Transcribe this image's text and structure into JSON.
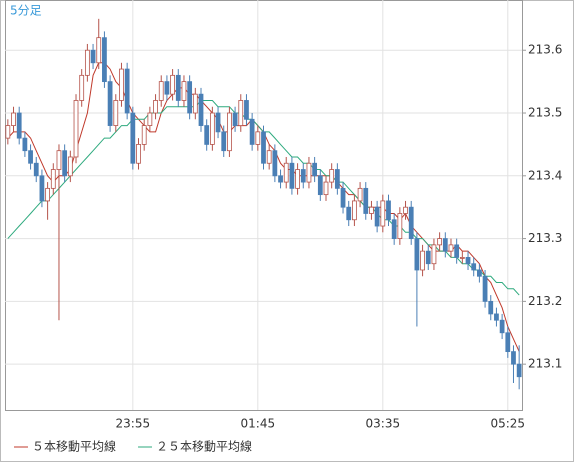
{
  "chart_data": {
    "type": "candlestick",
    "label": "5分足",
    "categories": [
      null,
      null,
      null,
      null,
      null,
      null,
      null,
      null,
      null,
      null,
      null,
      null,
      null,
      null,
      null,
      null,
      null,
      null,
      null,
      null,
      null,
      null,
      "23:55",
      null,
      null,
      null,
      null,
      null,
      null,
      null,
      null,
      null,
      null,
      null,
      null,
      null,
      null,
      null,
      null,
      null,
      null,
      null,
      null,
      null,
      "01:45",
      null,
      null,
      null,
      null,
      null,
      null,
      null,
      null,
      null,
      null,
      null,
      null,
      null,
      null,
      null,
      null,
      null,
      null,
      null,
      null,
      null,
      "03:35",
      null,
      null,
      null,
      null,
      null,
      null,
      null,
      null,
      null,
      null,
      null,
      null,
      null,
      null,
      null,
      null,
      null,
      null,
      null,
      null,
      null,
      "05:25",
      null,
      null
    ],
    "open": [
      213.46,
      213.48,
      213.5,
      213.46,
      213.44,
      213.42,
      213.4,
      213.36,
      213.38,
      213.41,
      213.44,
      213.4,
      213.43,
      213.52,
      213.56,
      213.6,
      213.58,
      213.62,
      213.55,
      213.48,
      213.52,
      213.57,
      213.5,
      213.42,
      213.45,
      213.48,
      213.5,
      213.52,
      213.55,
      213.53,
      213.56,
      213.52,
      213.55,
      213.5,
      213.53,
      213.48,
      213.45,
      213.5,
      213.47,
      213.44,
      213.5,
      213.48,
      213.52,
      213.49,
      213.45,
      213.47,
      213.42,
      213.44,
      213.4,
      213.39,
      213.42,
      213.38,
      213.41,
      213.39,
      213.42,
      213.4,
      213.37,
      213.39,
      213.41,
      213.38,
      213.35,
      213.33,
      213.36,
      213.38,
      213.34,
      213.35,
      213.32,
      213.36,
      213.33,
      213.3,
      213.34,
      213.35,
      213.3,
      213.25,
      213.28,
      213.26,
      213.29,
      213.3,
      213.28,
      213.29,
      213.27,
      213.27,
      213.26,
      213.25,
      213.24,
      213.2,
      213.18,
      213.17,
      213.15,
      213.12,
      213.1
    ],
    "high": [
      213.49,
      213.51,
      213.51,
      213.47,
      213.45,
      213.43,
      213.41,
      213.39,
      213.42,
      213.45,
      213.45,
      213.44,
      213.53,
      213.57,
      213.61,
      213.61,
      213.65,
      213.63,
      213.56,
      213.53,
      213.58,
      213.58,
      213.51,
      213.46,
      213.49,
      213.51,
      213.53,
      213.56,
      213.56,
      213.57,
      213.57,
      213.56,
      213.56,
      213.54,
      213.54,
      213.49,
      213.51,
      213.51,
      213.48,
      213.51,
      213.51,
      213.53,
      213.53,
      213.5,
      213.48,
      213.48,
      213.45,
      213.45,
      213.41,
      213.43,
      213.43,
      213.42,
      213.42,
      213.43,
      213.43,
      213.41,
      213.4,
      213.42,
      213.42,
      213.39,
      213.36,
      213.37,
      213.39,
      213.39,
      213.36,
      213.36,
      213.37,
      213.37,
      213.34,
      213.35,
      213.36,
      213.36,
      213.31,
      213.29,
      213.29,
      213.3,
      213.31,
      213.31,
      213.3,
      213.3,
      213.28,
      213.28,
      213.27,
      213.26,
      213.25,
      213.21,
      213.19,
      213.18,
      213.16,
      213.13,
      213.13
    ],
    "low": [
      213.45,
      213.47,
      213.45,
      213.43,
      213.41,
      213.39,
      213.35,
      213.33,
      213.37,
      213.17,
      213.39,
      213.39,
      213.42,
      213.51,
      213.55,
      213.57,
      213.57,
      213.54,
      213.47,
      213.47,
      213.51,
      213.49,
      213.41,
      213.41,
      213.44,
      213.47,
      213.49,
      213.51,
      213.52,
      213.52,
      213.51,
      213.51,
      213.49,
      213.49,
      213.47,
      213.44,
      213.44,
      213.46,
      213.43,
      213.43,
      213.47,
      213.47,
      213.48,
      213.44,
      213.44,
      213.41,
      213.41,
      213.39,
      213.38,
      213.38,
      213.37,
      213.37,
      213.38,
      213.38,
      213.39,
      213.36,
      213.36,
      213.38,
      213.37,
      213.34,
      213.32,
      213.32,
      213.35,
      213.33,
      213.33,
      213.31,
      213.31,
      213.32,
      213.29,
      213.29,
      213.33,
      213.29,
      213.16,
      213.24,
      213.25,
      213.25,
      213.28,
      213.27,
      213.27,
      213.26,
      213.26,
      213.25,
      213.24,
      213.23,
      213.19,
      213.17,
      213.16,
      213.14,
      213.11,
      213.07,
      213.06
    ],
    "close": [
      213.48,
      213.5,
      213.46,
      213.44,
      213.42,
      213.4,
      213.36,
      213.38,
      213.41,
      213.44,
      213.4,
      213.43,
      213.52,
      213.56,
      213.6,
      213.58,
      213.62,
      213.55,
      213.48,
      213.52,
      213.57,
      213.5,
      213.42,
      213.45,
      213.48,
      213.5,
      213.52,
      213.55,
      213.53,
      213.56,
      213.52,
      213.55,
      213.5,
      213.53,
      213.48,
      213.45,
      213.5,
      213.47,
      213.44,
      213.5,
      213.48,
      213.52,
      213.49,
      213.45,
      213.47,
      213.42,
      213.44,
      213.4,
      213.39,
      213.42,
      213.38,
      213.41,
      213.39,
      213.42,
      213.4,
      213.37,
      213.39,
      213.41,
      213.38,
      213.35,
      213.33,
      213.36,
      213.38,
      213.34,
      213.35,
      213.32,
      213.36,
      213.33,
      213.3,
      213.34,
      213.35,
      213.3,
      213.25,
      213.28,
      213.26,
      213.29,
      213.3,
      213.28,
      213.29,
      213.27,
      213.27,
      213.26,
      213.25,
      213.24,
      213.2,
      213.18,
      213.17,
      213.15,
      213.12,
      213.1,
      213.08
    ],
    "up_color": "#b5534a",
    "down_color": "#4a7fb5",
    "series": [
      {
        "name": "５本移動平均線",
        "color": "#c0392b",
        "values": [
          213.46,
          213.47,
          213.47,
          213.47,
          213.46,
          213.44,
          213.42,
          213.4,
          213.39,
          213.4,
          213.4,
          213.41,
          213.44,
          213.47,
          213.5,
          213.56,
          213.58,
          213.58,
          213.57,
          213.55,
          213.54,
          213.52,
          213.5,
          213.49,
          213.48,
          213.47,
          213.47,
          213.5,
          213.52,
          213.53,
          213.54,
          213.54,
          213.53,
          213.53,
          213.52,
          213.51,
          213.5,
          213.49,
          213.47,
          213.47,
          213.48,
          213.48,
          213.48,
          213.49,
          213.48,
          213.47,
          213.45,
          213.44,
          213.42,
          213.41,
          213.41,
          213.4,
          213.4,
          213.4,
          213.4,
          213.4,
          213.4,
          213.4,
          213.39,
          213.38,
          213.37,
          213.37,
          213.36,
          213.35,
          213.35,
          213.35,
          213.35,
          213.34,
          213.34,
          213.33,
          213.34,
          213.32,
          213.31,
          213.3,
          213.29,
          213.28,
          213.28,
          213.28,
          213.28,
          213.29,
          213.28,
          213.28,
          213.27,
          213.26,
          213.24,
          213.23,
          213.21,
          213.19,
          213.16,
          213.14,
          213.12
        ]
      },
      {
        "name": "２５本移動平均線",
        "color": "#2eaa7e",
        "values": [
          213.3,
          213.31,
          213.32,
          213.33,
          213.34,
          213.35,
          213.36,
          213.36,
          213.37,
          213.38,
          213.39,
          213.4,
          213.41,
          213.42,
          213.43,
          213.44,
          213.45,
          213.46,
          213.46,
          213.47,
          213.48,
          213.48,
          213.49,
          213.49,
          213.49,
          213.5,
          213.5,
          213.5,
          213.51,
          213.51,
          213.51,
          213.51,
          213.51,
          213.51,
          213.52,
          213.52,
          213.52,
          213.51,
          213.51,
          213.51,
          213.5,
          213.5,
          213.49,
          213.49,
          213.48,
          213.47,
          213.47,
          213.46,
          213.45,
          213.44,
          213.43,
          213.43,
          213.42,
          213.42,
          213.41,
          213.41,
          213.4,
          213.4,
          213.39,
          213.39,
          213.38,
          213.37,
          213.36,
          213.35,
          213.35,
          213.34,
          213.33,
          213.33,
          213.32,
          213.32,
          213.31,
          213.31,
          213.3,
          213.3,
          213.29,
          213.29,
          213.28,
          213.28,
          213.27,
          213.27,
          213.26,
          213.26,
          213.25,
          213.25,
          213.24,
          213.24,
          213.23,
          213.23,
          213.22,
          213.22,
          213.21
        ]
      }
    ],
    "ylim": [
      213.027,
      213.68
    ],
    "yticks": [
      213.1,
      213.2,
      213.3,
      213.4,
      213.5,
      213.6
    ],
    "grid": true,
    "legend": "bottom"
  }
}
